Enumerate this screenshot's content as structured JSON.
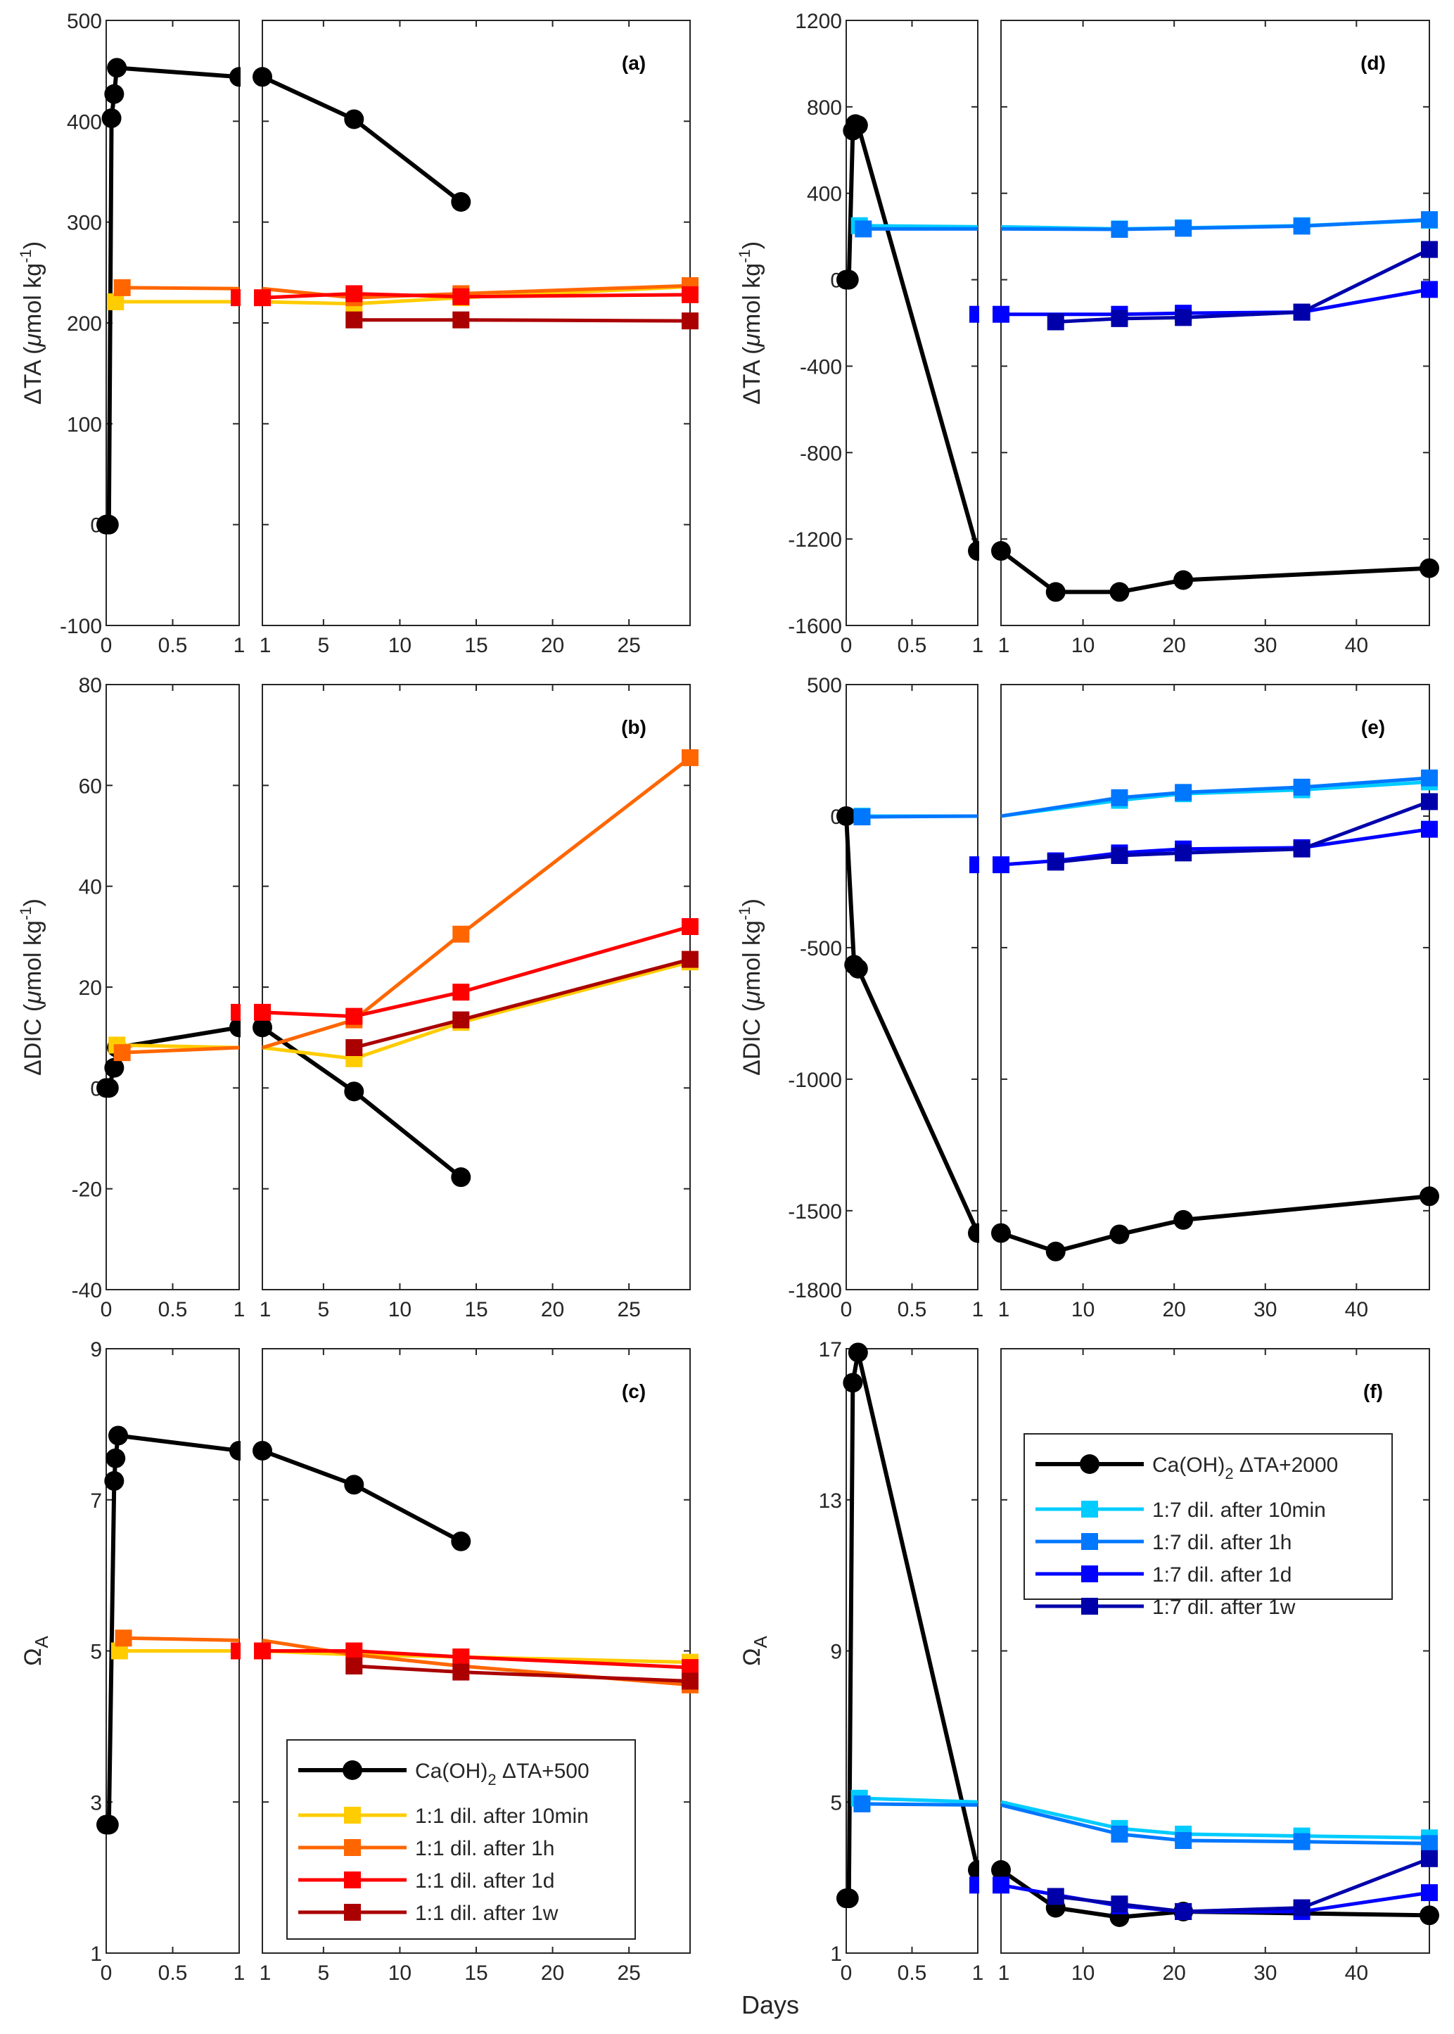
{
  "figure": {
    "xlabel_shared": "Days"
  },
  "legends": [
    {
      "panel": "c",
      "entries": [
        {
          "label": "Ca(OH)",
          "sub": "2",
          "rest": " ΔTA+500",
          "color": "#000000",
          "marker": "circle"
        },
        {
          "label": "1:1 dil. after 10min",
          "color": "#FFCC00",
          "marker": "square"
        },
        {
          "label": "1:1 dil. after 1h",
          "color": "#FF6600",
          "marker": "square"
        },
        {
          "label": "1:1 dil. after 1d",
          "color": "#FF0000",
          "marker": "square"
        },
        {
          "label": "1:1 dil. after 1w",
          "color": "#AA0000",
          "marker": "square"
        }
      ]
    },
    {
      "panel": "f",
      "entries": [
        {
          "label": "Ca(OH)",
          "sub": "2",
          "rest": " ΔTA+2000",
          "color": "#000000",
          "marker": "circle"
        },
        {
          "label": "1:7 dil. after 10min",
          "color": "#00CCFF",
          "marker": "square"
        },
        {
          "label": "1:7 dil. after 1h",
          "color": "#0077FF",
          "marker": "square"
        },
        {
          "label": "1:7 dil. after 1d",
          "color": "#0000FF",
          "marker": "square"
        },
        {
          "label": "1:7 dil. after 1w",
          "color": "#0000AA",
          "marker": "square"
        }
      ]
    }
  ],
  "chart_data": [
    {
      "id": "a",
      "tag": "(a)",
      "type": "line",
      "ylabel": "ΔTA (μmol kg⁻¹)",
      "ylabel_kind": "umol",
      "ylabel_prefix": "ΔTA",
      "ylim": [
        -100,
        500
      ],
      "yticks": [
        -100,
        0,
        100,
        200,
        300,
        400,
        500
      ],
      "xlim_left": [
        0,
        1
      ],
      "xticks_left": [
        0,
        0.5,
        1
      ],
      "xlim_right": [
        1,
        29
      ],
      "xticks_right": [
        1,
        5,
        10,
        15,
        20,
        25
      ],
      "series": [
        {
          "name": "Ca(OH)2 ΔTA+500",
          "color": "#000000",
          "marker": "circle",
          "x": [
            0,
            0.02,
            0.04,
            0.06,
            0.08,
            1,
            7,
            14
          ],
          "y": [
            0,
            0,
            403,
            427,
            453,
            444,
            402,
            320
          ]
        },
        {
          "name": "1:1 dil. after 10min",
          "color": "#FFCC00",
          "marker": "square",
          "x": [
            0.07,
            1,
            7,
            14,
            29
          ],
          "y": [
            221,
            221,
            219,
            225,
            236
          ],
          "markers_at": [
            0.07,
            7,
            14,
            29
          ]
        },
        {
          "name": "1:1 dil. after 1h",
          "color": "#FF6600",
          "marker": "square",
          "x": [
            0.12,
            1,
            7,
            14,
            29
          ],
          "y": [
            235,
            234,
            225,
            229,
            237
          ],
          "markers_at": [
            0.12,
            7,
            14,
            29
          ]
        },
        {
          "name": "1:1 dil. after 1d",
          "color": "#FF0000",
          "marker": "square",
          "x": [
            1,
            7,
            14,
            29
          ],
          "y": [
            225,
            229,
            226,
            228
          ]
        },
        {
          "name": "1:1 dil. after 1w",
          "color": "#AA0000",
          "marker": "square",
          "x": [
            7,
            14,
            29
          ],
          "y": [
            203,
            203,
            202
          ]
        }
      ]
    },
    {
      "id": "b",
      "tag": "(b)",
      "type": "line",
      "ylabel": "ΔDIC (μmol kg⁻¹)",
      "ylabel_kind": "umol",
      "ylabel_prefix": "ΔDIC",
      "ylim": [
        -40,
        80
      ],
      "yticks": [
        -40,
        -20,
        0,
        20,
        40,
        60,
        80
      ],
      "xlim_left": [
        0,
        1
      ],
      "xticks_left": [
        0,
        0.5,
        1
      ],
      "xlim_right": [
        1,
        29
      ],
      "xticks_right": [
        1,
        5,
        10,
        15,
        20,
        25
      ],
      "series": [
        {
          "name": "Ca(OH)2 ΔTA+500",
          "color": "#000000",
          "marker": "circle",
          "x": [
            0,
            0.02,
            0.06,
            0.08,
            1,
            7,
            14
          ],
          "y": [
            0,
            0,
            4,
            8,
            12,
            -0.7,
            -17.7
          ]
        },
        {
          "name": "1:1 dil. after 10min",
          "color": "#FFCC00",
          "marker": "square",
          "x": [
            0.08,
            1,
            7,
            14,
            29
          ],
          "y": [
            8.5,
            8,
            5.8,
            13,
            25
          ],
          "markers_at": [
            0.08,
            7,
            14,
            29
          ]
        },
        {
          "name": "1:1 dil. after 1h",
          "color": "#FF6600",
          "marker": "square",
          "x": [
            0.12,
            1,
            7,
            14,
            29
          ],
          "y": [
            7,
            8,
            13.5,
            30.5,
            65.5
          ],
          "markers_at": [
            0.12,
            7,
            14,
            29
          ]
        },
        {
          "name": "1:1 dil. after 1d",
          "color": "#FF0000",
          "marker": "square",
          "x": [
            1,
            7,
            14,
            29
          ],
          "y": [
            15,
            14.2,
            19,
            32
          ]
        },
        {
          "name": "1:1 dil. after 1w",
          "color": "#AA0000",
          "marker": "square",
          "x": [
            7,
            14,
            29
          ],
          "y": [
            8,
            13.5,
            25.5
          ]
        }
      ]
    },
    {
      "id": "c",
      "tag": "(c)",
      "type": "line",
      "ylabel": "ΩA",
      "ylabel_kind": "omega",
      "ylim": [
        1,
        9
      ],
      "yticks": [
        1,
        3,
        5,
        7,
        9
      ],
      "xlim_left": [
        0,
        1
      ],
      "xticks_left": [
        0,
        0.5,
        1
      ],
      "xlim_right": [
        1,
        29
      ],
      "xticks_right": [
        1,
        5,
        10,
        15,
        20,
        25
      ],
      "series": [
        {
          "name": "Ca(OH)2 ΔTA+500",
          "color": "#000000",
          "marker": "circle",
          "x": [
            0,
            0.02,
            0.06,
            0.07,
            0.09,
            1,
            7,
            14
          ],
          "y": [
            2.7,
            2.7,
            7.25,
            7.55,
            7.85,
            7.65,
            7.2,
            6.45
          ]
        },
        {
          "name": "1:1 dil. after 10min",
          "color": "#FFCC00",
          "marker": "square",
          "x": [
            0.1,
            1,
            7,
            14,
            29
          ],
          "y": [
            5.0,
            5.0,
            4.95,
            4.92,
            4.85
          ],
          "markers_at": [
            0.1,
            14,
            29
          ]
        },
        {
          "name": "1:1 dil. after 1h",
          "color": "#FF6600",
          "marker": "square",
          "x": [
            0.13,
            1,
            7,
            14,
            29
          ],
          "y": [
            5.17,
            5.14,
            4.95,
            4.8,
            4.55
          ],
          "markers_at": [
            0.13,
            29
          ]
        },
        {
          "name": "1:1 dil. after 1d",
          "color": "#FF0000",
          "marker": "square",
          "x": [
            1,
            7,
            14,
            29
          ],
          "y": [
            5.0,
            5.0,
            4.92,
            4.78
          ]
        },
        {
          "name": "1:1 dil. after 1w",
          "color": "#AA0000",
          "marker": "square",
          "x": [
            7,
            14,
            29
          ],
          "y": [
            4.8,
            4.72,
            4.6
          ]
        }
      ]
    },
    {
      "id": "d",
      "tag": "(d)",
      "type": "line",
      "ylabel": "ΔTA (μmol kg⁻¹)",
      "ylabel_kind": "umol",
      "ylabel_prefix": "ΔTA",
      "ylim": [
        -1600,
        1200
      ],
      "yticks": [
        -1600,
        -1200,
        -800,
        -400,
        0,
        400,
        800,
        1200
      ],
      "xlim_left": [
        0,
        1
      ],
      "xticks_left": [
        0,
        0.5,
        1
      ],
      "xlim_right": [
        1,
        48
      ],
      "xticks_right": [
        1,
        10,
        20,
        30,
        40
      ],
      "series": [
        {
          "name": "Ca(OH)2 ΔTA+2000",
          "color": "#000000",
          "marker": "circle",
          "x": [
            0,
            0.02,
            0.05,
            0.07,
            0.09,
            1,
            7,
            14,
            21,
            48
          ],
          "y": [
            0,
            0,
            690,
            720,
            715,
            -1255,
            -1445,
            -1445,
            -1390,
            -1335
          ]
        },
        {
          "name": "1:7 dil. after 10min",
          "color": "#00CCFF",
          "marker": "square",
          "x": [
            0.1,
            1,
            14,
            21,
            34,
            48
          ],
          "y": [
            250,
            245,
            235,
            240,
            250,
            275
          ],
          "markers_at": [
            0.1,
            14,
            21,
            34,
            48
          ]
        },
        {
          "name": "1:7 dil. after 1h",
          "color": "#0077FF",
          "marker": "square",
          "x": [
            0.13,
            1,
            14,
            21,
            34,
            48
          ],
          "y": [
            235,
            235,
            233,
            238,
            248,
            278
          ],
          "markers_at": [
            0.13,
            14,
            21,
            34,
            48
          ]
        },
        {
          "name": "1:7 dil. after 1d",
          "color": "#0000FF",
          "marker": "square",
          "x": [
            1,
            14,
            21,
            34,
            48
          ],
          "y": [
            -160,
            -160,
            -155,
            -150,
            -45
          ]
        },
        {
          "name": "1:7 dil. after 1w",
          "color": "#0000AA",
          "marker": "square",
          "x": [
            7,
            14,
            21,
            34,
            48
          ],
          "y": [
            -195,
            -180,
            -175,
            -150,
            140
          ]
        }
      ]
    },
    {
      "id": "e",
      "tag": "(e)",
      "type": "line",
      "ylabel": "ΔDIC (μmol kg⁻¹)",
      "ylabel_kind": "umol",
      "ylabel_prefix": "ΔDIC",
      "ylim": [
        -1800,
        500
      ],
      "yticks": [
        -1800,
        -1500,
        -1000,
        -500,
        0,
        500
      ],
      "xlim_left": [
        0,
        1
      ],
      "xticks_left": [
        0,
        0.5,
        1
      ],
      "xlim_right": [
        1,
        48
      ],
      "xticks_right": [
        1,
        10,
        20,
        30,
        40
      ],
      "series": [
        {
          "name": "Ca(OH)2 ΔTA+2000",
          "color": "#000000",
          "marker": "circle",
          "x": [
            0,
            0.06,
            0.09,
            1,
            7,
            14,
            21,
            48
          ],
          "y": [
            0,
            -565,
            -580,
            -1585,
            -1655,
            -1590,
            -1535,
            -1445
          ]
        },
        {
          "name": "1:7 dil. after 10min",
          "color": "#00CCFF",
          "marker": "square",
          "x": [
            0.12,
            1,
            14,
            21,
            34,
            48
          ],
          "y": [
            0,
            0,
            60,
            85,
            100,
            130
          ],
          "markers_at": [
            0.12,
            14,
            21,
            34,
            48
          ]
        },
        {
          "name": "1:7 dil. after 1h",
          "color": "#0077FF",
          "marker": "square",
          "x": [
            0.12,
            1,
            14,
            21,
            34,
            48
          ],
          "y": [
            -3,
            0,
            70,
            90,
            110,
            145
          ],
          "markers_at": [
            0.12,
            14,
            21,
            34,
            48
          ]
        },
        {
          "name": "1:7 dil. after 1d",
          "color": "#0000FF",
          "marker": "square",
          "x": [
            1,
            7,
            14,
            21,
            34,
            48
          ],
          "y": [
            -185,
            -170,
            -140,
            -125,
            -120,
            -50
          ]
        },
        {
          "name": "1:7 dil. after 1w",
          "color": "#0000AA",
          "marker": "square",
          "x": [
            7,
            14,
            21,
            34,
            48
          ],
          "y": [
            -175,
            -150,
            -140,
            -125,
            55
          ]
        }
      ]
    },
    {
      "id": "f",
      "tag": "(f)",
      "type": "line",
      "ylabel": "ΩA",
      "ylabel_kind": "omega",
      "ylim": [
        1,
        17
      ],
      "yticks": [
        1,
        5,
        9,
        13,
        17
      ],
      "xlim_left": [
        0,
        1
      ],
      "xticks_left": [
        0,
        0.5,
        1
      ],
      "xlim_right": [
        1,
        48
      ],
      "xticks_right": [
        1,
        10,
        20,
        30,
        40
      ],
      "series": [
        {
          "name": "Ca(OH)2 ΔTA+2000",
          "color": "#000000",
          "marker": "circle",
          "x": [
            0,
            0.02,
            0.05,
            0.09,
            1,
            7,
            14,
            21,
            48
          ],
          "y": [
            2.45,
            2.45,
            16.1,
            16.9,
            3.2,
            2.2,
            1.95,
            2.1,
            2.0
          ]
        },
        {
          "name": "1:7 dil. after 10min",
          "color": "#00CCFF",
          "marker": "square",
          "x": [
            0.1,
            1,
            14,
            21,
            34,
            48
          ],
          "y": [
            5.1,
            5.0,
            4.3,
            4.15,
            4.1,
            4.05
          ],
          "markers_at": [
            0.1,
            14,
            21,
            34,
            48
          ]
        },
        {
          "name": "1:7 dil. after 1h",
          "color": "#0077FF",
          "marker": "square",
          "x": [
            0.12,
            1,
            14,
            21,
            34,
            48
          ],
          "y": [
            4.95,
            4.92,
            4.15,
            3.98,
            3.95,
            3.9
          ],
          "markers_at": [
            0.12,
            14,
            21,
            34,
            48
          ]
        },
        {
          "name": "1:7 dil. after 1d",
          "color": "#0000FF",
          "marker": "square",
          "x": [
            1,
            14,
            21,
            34,
            48
          ],
          "y": [
            2.8,
            2.25,
            2.1,
            2.1,
            2.6
          ]
        },
        {
          "name": "1:7 dil. after 1w",
          "color": "#0000AA",
          "marker": "square",
          "x": [
            7,
            14,
            21,
            34,
            48
          ],
          "y": [
            2.5,
            2.3,
            2.1,
            2.2,
            3.5
          ]
        }
      ]
    }
  ]
}
